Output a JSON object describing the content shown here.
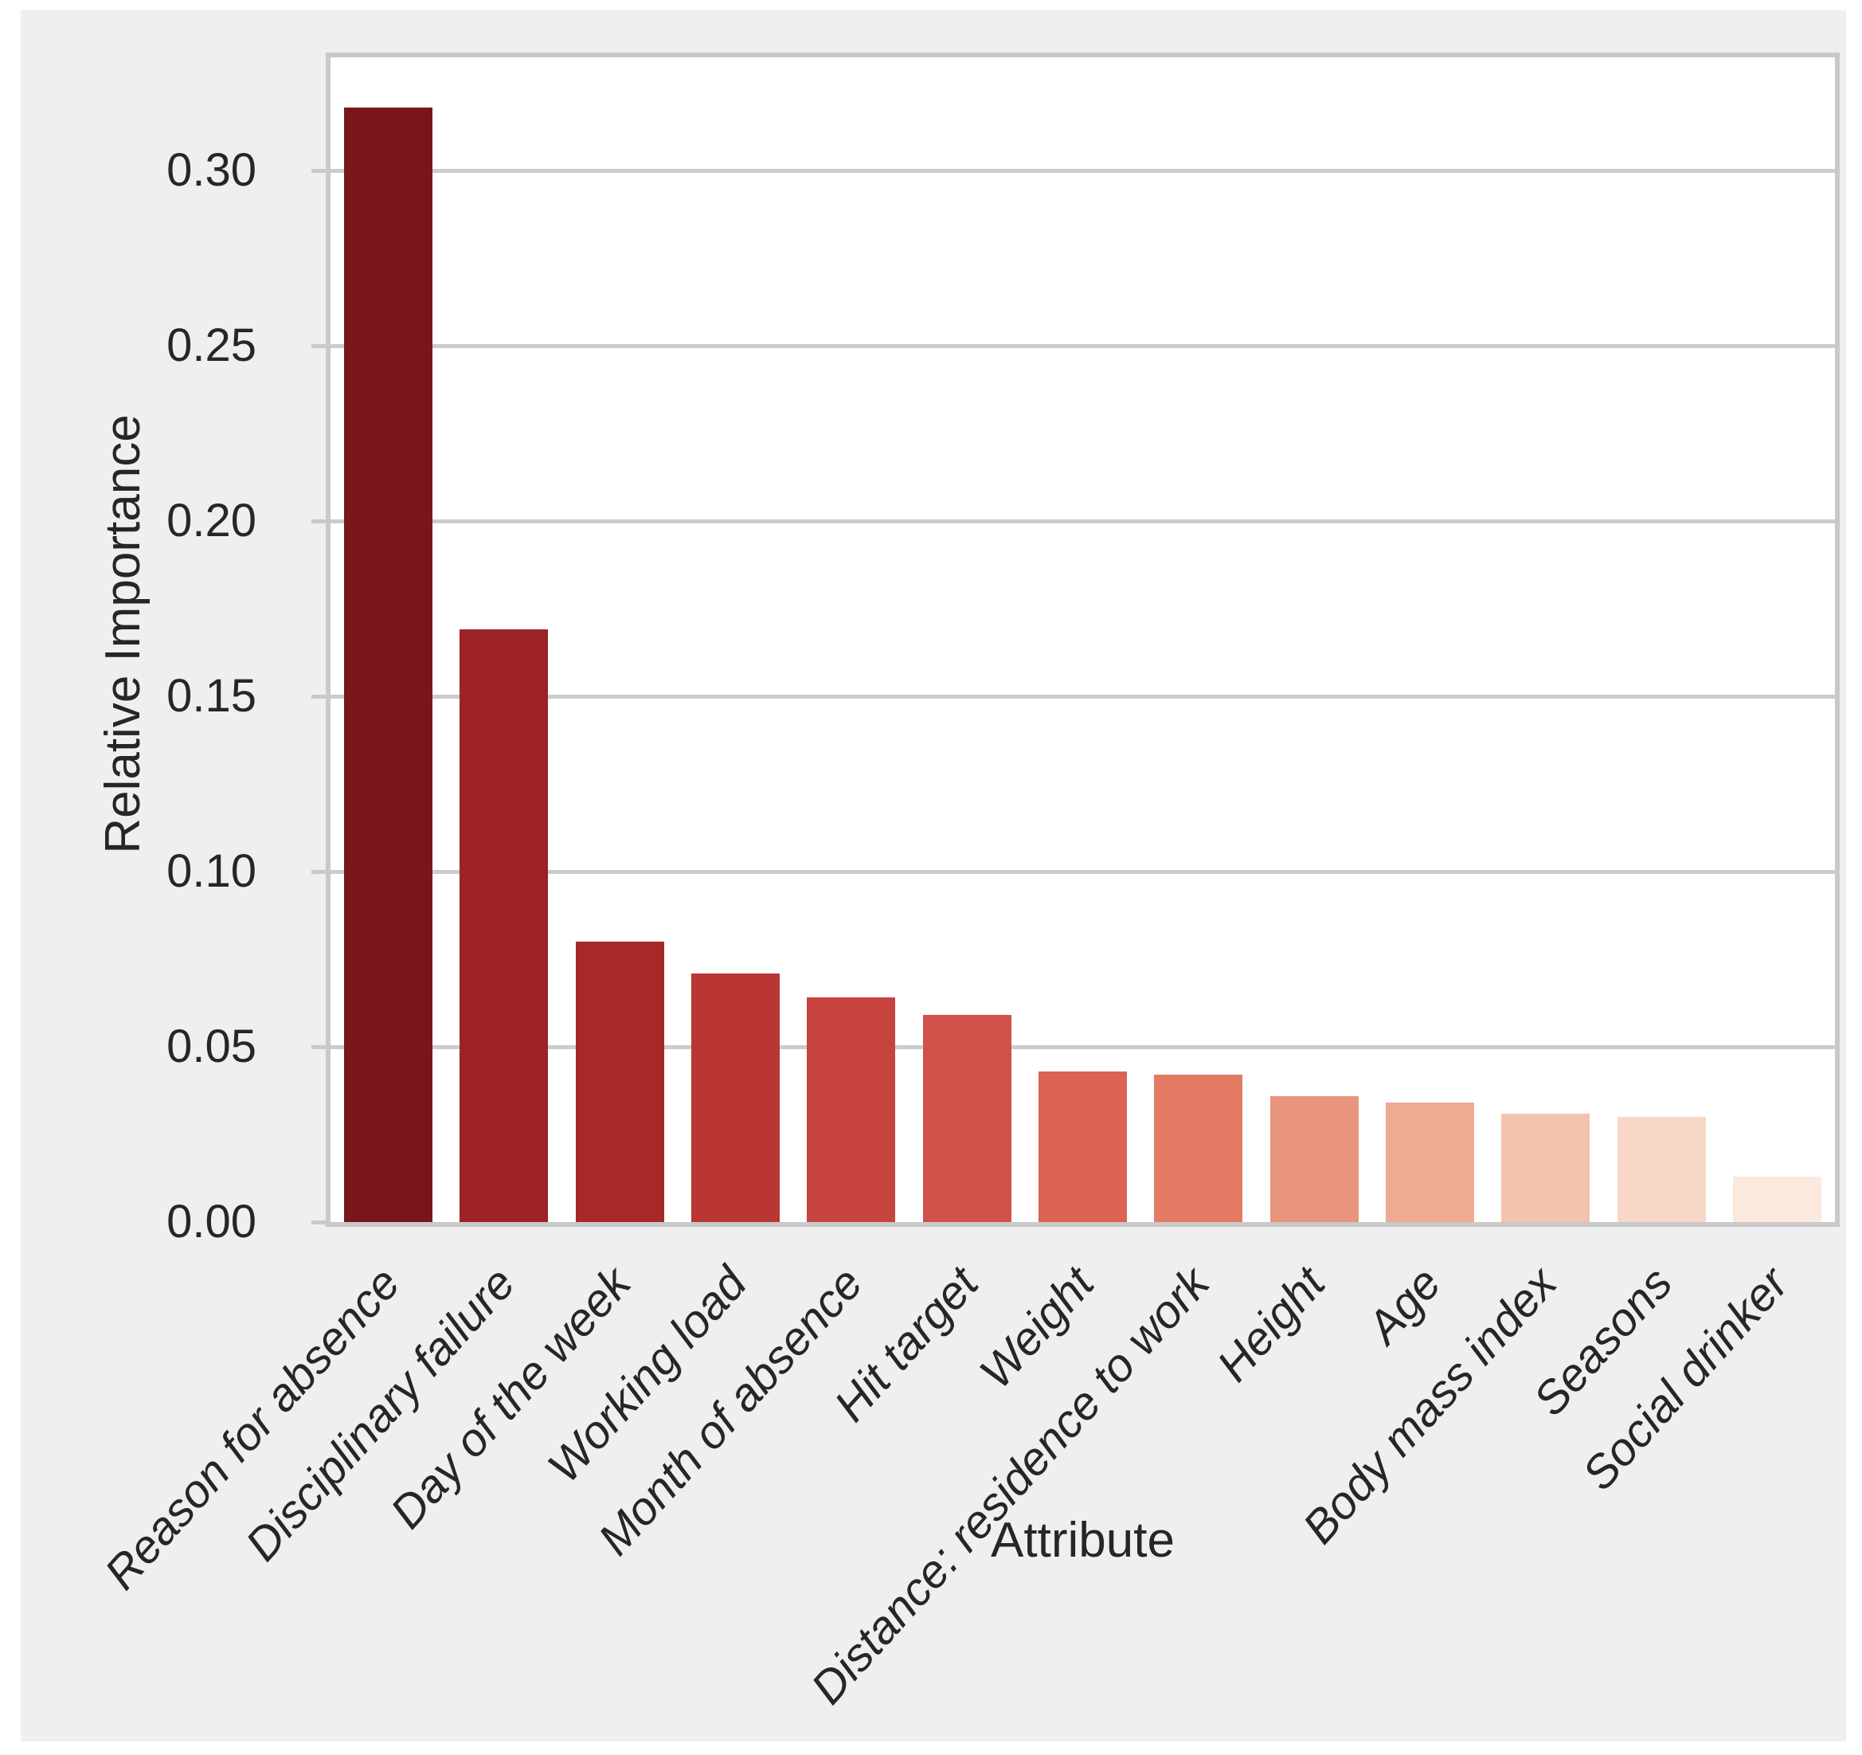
{
  "chart_data": {
    "type": "bar",
    "title": "",
    "xlabel": "Attribute",
    "ylabel": "Relative Importance",
    "categories": [
      "Reason for absence",
      "Disciplinary failure",
      "Day of the week",
      "Working load",
      "Month of absence",
      "Hit target",
      "Weight",
      "Distance: residence to work",
      "Height",
      "Age",
      "Body mass index",
      "Seasons",
      "Social drinker"
    ],
    "values": [
      0.318,
      0.169,
      0.08,
      0.071,
      0.064,
      0.059,
      0.043,
      0.042,
      0.036,
      0.034,
      0.031,
      0.03,
      0.013
    ],
    "bar_colors": [
      "#7a161b",
      "#9c2227",
      "#a62829",
      "#b93634",
      "#c64340",
      "#d1504a",
      "#dc6351",
      "#e37b64",
      "#e9947c",
      "#eeab93",
      "#f3c3ad",
      "#f7d8c7",
      "#fbe9de"
    ],
    "ytick_values": [
      0.0,
      0.05,
      0.1,
      0.15,
      0.2,
      0.25,
      0.3
    ],
    "ytick_labels": [
      "0.00",
      "0.05",
      "0.10",
      "0.15",
      "0.20",
      "0.25",
      "0.30"
    ],
    "ylim": [
      0,
      0.3323
    ],
    "grid": true,
    "legend": "none",
    "colors": {
      "figure_background": "#efefef",
      "plot_background": "#ffffff",
      "spine": "#c9c9c9",
      "gridline": "#cccccc",
      "text": "#262626"
    }
  }
}
